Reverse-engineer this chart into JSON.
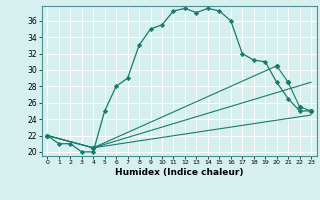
{
  "xlabel": "Humidex (Indice chaleur)",
  "background_color": "#d6efef",
  "grid_color": "#ffffff",
  "line_color": "#1a7a6a",
  "xlim": [
    -0.5,
    23.5
  ],
  "ylim": [
    19.5,
    37.8
  ],
  "yticks": [
    20,
    22,
    24,
    26,
    28,
    30,
    32,
    34,
    36
  ],
  "xticks": [
    0,
    1,
    2,
    3,
    4,
    5,
    6,
    7,
    8,
    9,
    10,
    11,
    12,
    13,
    14,
    15,
    16,
    17,
    18,
    19,
    20,
    21,
    22,
    23
  ],
  "line1_x": [
    0,
    1,
    2,
    3,
    4,
    5,
    6,
    7,
    8,
    9,
    10,
    11,
    12,
    13,
    14,
    15,
    16,
    17,
    18,
    19,
    20,
    21,
    22,
    23
  ],
  "line1_y": [
    22,
    21,
    21,
    20,
    20,
    25,
    28,
    29,
    33,
    35,
    35.5,
    37.2,
    37.5,
    37.0,
    37.5,
    37.2,
    36,
    32,
    31.2,
    31,
    28.5,
    26.5,
    25,
    25
  ],
  "line2_x": [
    0,
    4,
    20,
    21,
    22,
    23
  ],
  "line2_y": [
    22,
    20.5,
    30.5,
    28.5,
    25.5,
    25
  ],
  "line3_x": [
    0,
    4,
    23
  ],
  "line3_y": [
    22,
    20.5,
    28.5
  ],
  "line4_x": [
    0,
    4,
    23
  ],
  "line4_y": [
    22,
    20.5,
    24.5
  ]
}
